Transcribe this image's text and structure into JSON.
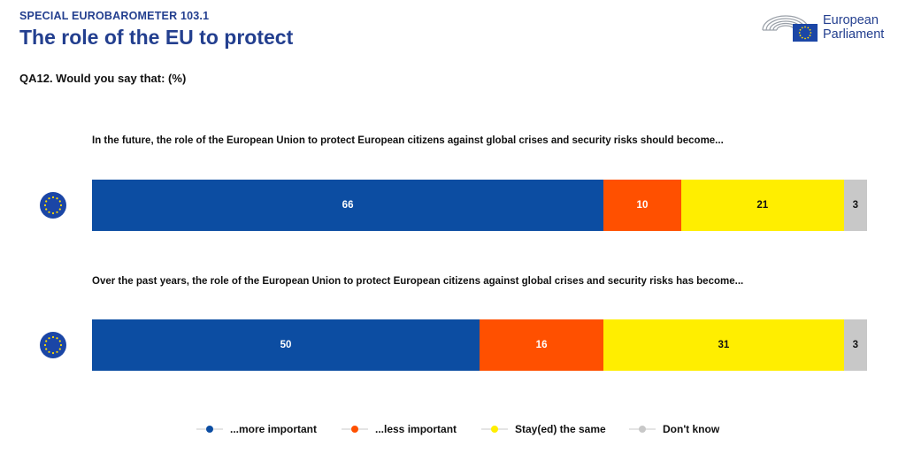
{
  "header": {
    "kicker": "SPECIAL EUROBAROMETER 103.1",
    "title": "The role of the EU to protect",
    "question": "QA12. Would you say that: (%)"
  },
  "logo": {
    "line1": "European",
    "line2": "Parliament"
  },
  "icons": {
    "flag": "eu-flag-icon",
    "logo": "european-parliament-hemicycle-icon"
  },
  "colors": {
    "brand": "#233f8f",
    "more_important": "#0c4da2",
    "less_important": "#ff5000",
    "same": "#ffee00",
    "dont_know": "#c8c8c8"
  },
  "chart_data": {
    "type": "bar",
    "orientation": "horizontal-stacked-100",
    "unit": "%",
    "categories": [
      "In the future, the role of the European Union to protect European citizens against global crises and security risks should become...",
      "Over the past years, the role of the European Union to protect European citizens against global crises and security risks has become..."
    ],
    "series": [
      {
        "name": "...more important",
        "values": [
          66,
          50
        ],
        "color": "#0c4da2",
        "label_color": "#ffffff"
      },
      {
        "name": "...less important",
        "values": [
          10,
          16
        ],
        "color": "#ff5000",
        "label_color": "#ffffff"
      },
      {
        "name": "Stay(ed) the same",
        "values": [
          21,
          31
        ],
        "color": "#ffee00",
        "label_color": "#111111"
      },
      {
        "name": "Don't know",
        "values": [
          3,
          3
        ],
        "color": "#c8c8c8",
        "label_color": "#111111"
      }
    ],
    "legend_position": "bottom-center",
    "grid": false
  }
}
